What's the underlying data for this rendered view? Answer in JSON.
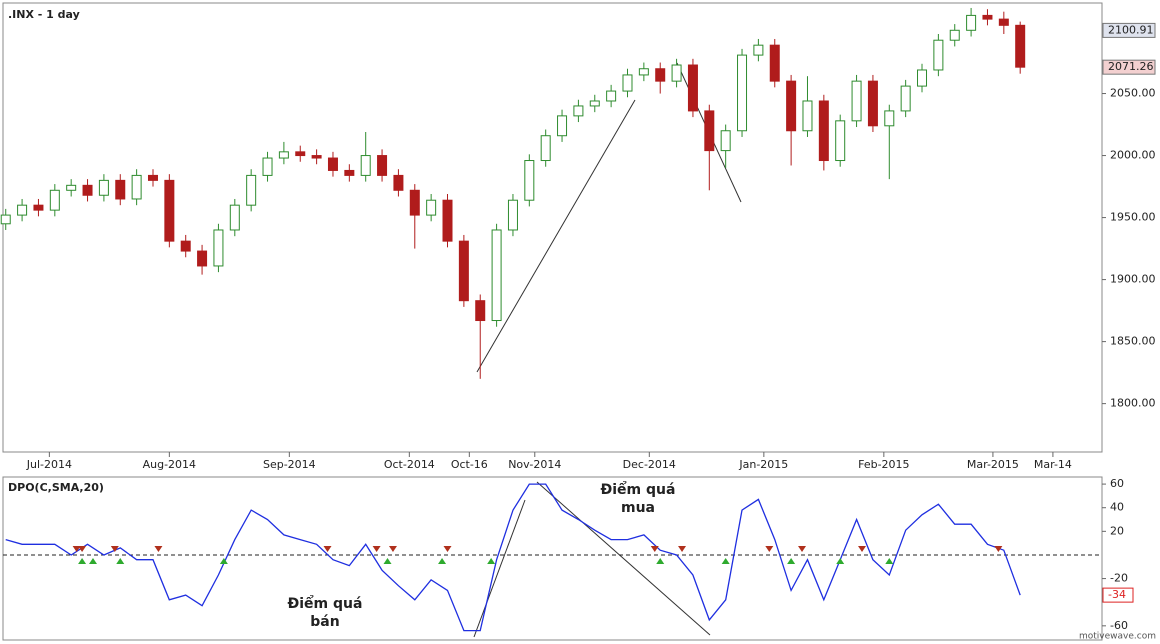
{
  "chart_data": [
    {
      "type": "candlestick",
      "title": ".INX - 1 day",
      "x": [
        0,
        3,
        6,
        9,
        12,
        15,
        18,
        21,
        24,
        27,
        30,
        33,
        36,
        39,
        42,
        45,
        48,
        51,
        54,
        57,
        60,
        63,
        66,
        69,
        72,
        75,
        78,
        81,
        84,
        87,
        90,
        93,
        96,
        99,
        102,
        105,
        108,
        111,
        114,
        117,
        120,
        123,
        126,
        129,
        132,
        135,
        138,
        141,
        144,
        147,
        150,
        153,
        156,
        159,
        162,
        165,
        168,
        171,
        174,
        177,
        180,
        183,
        186
      ],
      "open": [
        1945,
        1952,
        1960,
        1956,
        1972,
        1976,
        1968,
        1980,
        1965,
        1984,
        1980,
        1931,
        1923,
        1911,
        1940,
        1960,
        1984,
        1998,
        2003,
        2000,
        1998,
        1988,
        1984,
        2000,
        1984,
        1972,
        1952,
        1964,
        1931,
        1883,
        1867,
        1940,
        1964,
        1996,
        2016,
        2032,
        2040,
        2044,
        2052,
        2065,
        2070,
        2060,
        2073,
        2036,
        2004,
        2020,
        2081,
        2089,
        2060,
        2020,
        2044,
        1996,
        2028,
        2060,
        2024,
        2036,
        2056,
        2069,
        2093,
        2101,
        2113,
        2110,
        2105
      ],
      "high": [
        1957,
        1965,
        1965,
        1977,
        1981,
        1981,
        1985,
        1985,
        1989,
        1989,
        1985,
        1936,
        1928,
        1945,
        1965,
        1989,
        2003,
        2011,
        2008,
        2005,
        2003,
        1993,
        2019,
        2005,
        1989,
        1977,
        1969,
        1969,
        1936,
        1888,
        1945,
        1969,
        2001,
        2021,
        2037,
        2045,
        2049,
        2057,
        2070,
        2075,
        2075,
        2078,
        2078,
        2041,
        2025,
        2086,
        2094,
        2094,
        2065,
        2064,
        2049,
        2033,
        2065,
        2065,
        2041,
        2061,
        2074,
        2098,
        2106,
        2119,
        2118,
        2116,
        2108
      ],
      "low": [
        1940,
        1947,
        1951,
        1951,
        1967,
        1963,
        1963,
        1960,
        1960,
        1975,
        1926,
        1918,
        1904,
        1906,
        1935,
        1955,
        1979,
        1993,
        1995,
        1993,
        1983,
        1979,
        1979,
        1979,
        1967,
        1925,
        1947,
        1926,
        1878,
        1820,
        1862,
        1935,
        1959,
        1991,
        2011,
        2027,
        2035,
        2039,
        2047,
        2060,
        2050,
        2055,
        2031,
        1972,
        1990,
        2015,
        2076,
        2055,
        1992,
        2015,
        1988,
        1991,
        2023,
        2019,
        1981,
        2031,
        2051,
        2064,
        2088,
        2096,
        2105,
        2098,
        2066
      ],
      "close": [
        1952,
        1960,
        1956,
        1972,
        1976,
        1968,
        1980,
        1965,
        1984,
        1980,
        1931,
        1923,
        1911,
        1940,
        1960,
        1984,
        1998,
        2003,
        2000,
        1998,
        1988,
        1984,
        2000,
        1984,
        1972,
        1952,
        1964,
        1931,
        1883,
        1867,
        1940,
        1964,
        1996,
        2016,
        2032,
        2040,
        2044,
        2052,
        2065,
        2070,
        2060,
        2073,
        2036,
        2004,
        2020,
        2081,
        2089,
        2060,
        2020,
        2044,
        1996,
        2028,
        2060,
        2024,
        2036,
        2056,
        2069,
        2093,
        2101,
        2113,
        2110,
        2105,
        2071.26
      ],
      "up_color": "#2e8b2e",
      "down_color": "#b01c1c",
      "xlim": [
        -0.5,
        201
      ],
      "xticks": [
        {
          "value": 8,
          "label": "Jul-2014"
        },
        {
          "value": 30,
          "label": "Aug-2014"
        },
        {
          "value": 52,
          "label": "Sep-2014"
        },
        {
          "value": 74,
          "label": "Oct-2014"
        },
        {
          "value": 85,
          "label": "Oct-16"
        },
        {
          "value": 97,
          "label": "Nov-2014"
        },
        {
          "value": 118,
          "label": "Dec-2014"
        },
        {
          "value": 139,
          "label": "Jan-2015"
        },
        {
          "value": 161,
          "label": "Feb-2015"
        },
        {
          "value": 181,
          "label": "Mar-2015"
        },
        {
          "value": 192,
          "label": "Mar-14"
        }
      ],
      "ylim": [
        1761,
        2123
      ],
      "yticks": [
        {
          "value": 1800,
          "label": "1800.00"
        },
        {
          "value": 1850,
          "label": "1850.00"
        },
        {
          "value": 1900,
          "label": "1900.00"
        },
        {
          "value": 1950,
          "label": "1950.00"
        },
        {
          "value": 2000,
          "label": "2000.00"
        },
        {
          "value": 2050,
          "label": "2050.00"
        }
      ],
      "price_tags": [
        2100.91,
        2071.26
      ],
      "price_tag_colors": [
        "#dfe3ee",
        "#f3d0d0"
      ]
    },
    {
      "type": "line",
      "title": "DPO(C,SMA,20)",
      "x": [
        0,
        3,
        6,
        9,
        12,
        15,
        18,
        21,
        24,
        27,
        30,
        33,
        36,
        39,
        42,
        45,
        48,
        51,
        54,
        57,
        60,
        63,
        66,
        69,
        72,
        75,
        78,
        81,
        84,
        87,
        90,
        93,
        96,
        99,
        102,
        105,
        108,
        111,
        114,
        117,
        120,
        123,
        126,
        129,
        132,
        135,
        138,
        141,
        144,
        147,
        150,
        153,
        156,
        159,
        162,
        165,
        168,
        171,
        174,
        177,
        180,
        183,
        186
      ],
      "values": [
        13,
        9,
        9,
        9,
        0,
        9,
        0,
        6,
        -4,
        -4,
        -38,
        -34,
        -43,
        -17,
        13,
        38,
        30,
        17,
        13,
        9,
        -4,
        -9,
        9,
        -13,
        -26,
        -38,
        -21,
        -30,
        -64,
        -64,
        -4,
        38,
        60,
        60,
        38,
        30,
        21,
        13,
        13,
        17,
        4,
        0,
        -17,
        -55,
        -38,
        38,
        47,
        13,
        -30,
        -4,
        -38,
        -4,
        30,
        -4,
        -17,
        21,
        34,
        43,
        26,
        26,
        9,
        4,
        -34
      ],
      "color": "#1f2fe0",
      "xlim": [
        -0.5,
        201
      ],
      "ylim": [
        -72,
        66
      ],
      "yticks": [
        60,
        40,
        20,
        -20,
        -60
      ],
      "reference_line": 0,
      "sell_signals": [
        13,
        14,
        20,
        28,
        59,
        68,
        71,
        81,
        119,
        124,
        140,
        146,
        157,
        182
      ],
      "buy_signals": [
        14,
        16,
        21,
        40,
        70,
        80,
        89,
        120,
        132,
        144,
        153,
        162
      ],
      "sell_color": "#b0301c",
      "buy_color": "#2eaa2e",
      "annotations": [
        [
          "Điểm quá",
          "bán"
        ],
        [
          "Điểm quá",
          "mua"
        ]
      ]
    }
  ],
  "watermark": "motivewave.com"
}
